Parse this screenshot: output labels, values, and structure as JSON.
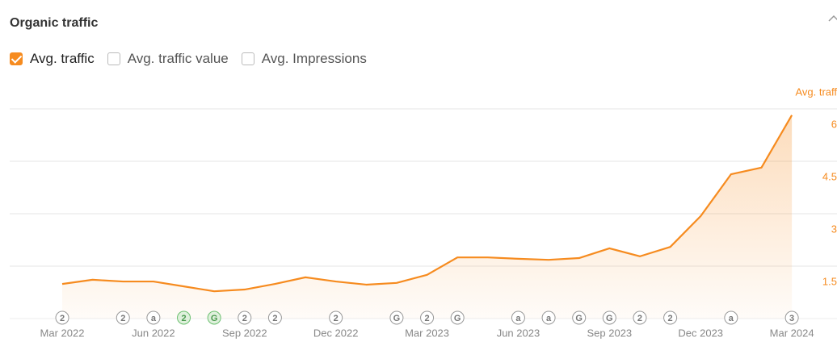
{
  "header": {
    "title": "Organic traffic"
  },
  "checkboxes": [
    {
      "label": "Avg. traffic",
      "checked": true
    },
    {
      "label": "Avg. traffic value",
      "checked": false
    },
    {
      "label": "Avg. Impressions",
      "checked": false
    }
  ],
  "chart_data": {
    "type": "line",
    "y_axis_label": "Avg. traff",
    "color": "#f68b1f",
    "categories": [
      "Mar 2022",
      null,
      null,
      "Jun 2022",
      null,
      null,
      "Sep 2022",
      null,
      null,
      "Dec 2022",
      null,
      null,
      "Mar 2023",
      null,
      null,
      "Jun 2023",
      null,
      null,
      "Sep 2023",
      null,
      null,
      "Dec 2023",
      null,
      null,
      "Mar 2024"
    ],
    "values": [
      0.99,
      1.11,
      1.06,
      1.06,
      0.92,
      0.78,
      0.83,
      0.99,
      1.18,
      1.06,
      0.97,
      1.02,
      1.25,
      1.75,
      1.75,
      1.71,
      1.68,
      1.73,
      2.01,
      1.78,
      2.05,
      2.93,
      4.13,
      4.32,
      5.82
    ],
    "ylim": [
      0,
      6
    ],
    "yticks": [
      1.5,
      3,
      4.5,
      6
    ],
    "grid": true,
    "markers": [
      {
        "label": "2",
        "color": "#999999"
      },
      null,
      {
        "label": "2",
        "color": "#999999"
      },
      {
        "label": "a",
        "color": "#999999"
      },
      {
        "label": "2",
        "color": "#6cc070"
      },
      {
        "label": "G",
        "color": "#6cc070"
      },
      {
        "label": "2",
        "color": "#999999"
      },
      {
        "label": "2",
        "color": "#999999"
      },
      null,
      {
        "label": "2",
        "color": "#999999"
      },
      null,
      {
        "label": "G",
        "color": "#999999"
      },
      {
        "label": "2",
        "color": "#999999"
      },
      {
        "label": "G",
        "color": "#999999"
      },
      null,
      {
        "label": "a",
        "color": "#999999"
      },
      {
        "label": "a",
        "color": "#999999"
      },
      {
        "label": "G",
        "color": "#999999"
      },
      {
        "label": "G",
        "color": "#999999"
      },
      {
        "label": "2",
        "color": "#999999"
      },
      {
        "label": "2",
        "color": "#999999"
      },
      null,
      {
        "label": "a",
        "color": "#999999"
      },
      null,
      {
        "label": "3",
        "color": "#999999"
      }
    ]
  }
}
